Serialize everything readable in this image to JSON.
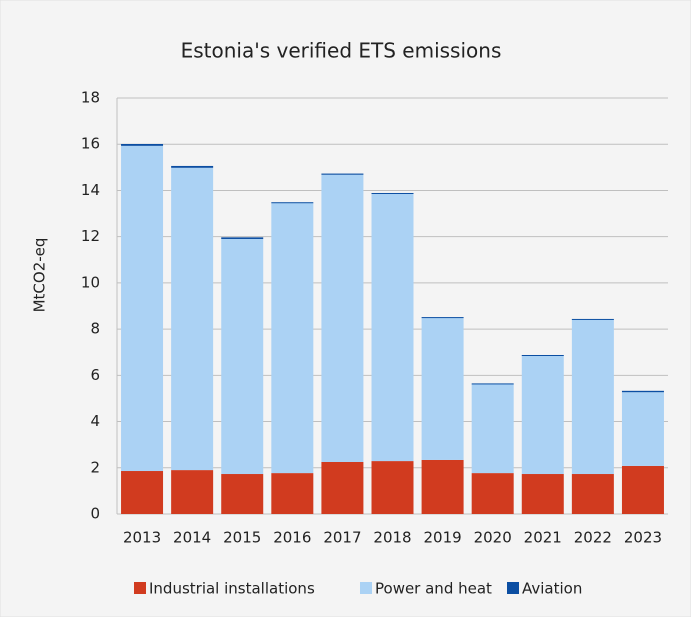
{
  "chart_data": {
    "type": "stacked_bar",
    "title": "Estonia's verified ETS emissions",
    "y_label": "MtCO2-eq",
    "categories": [
      "2013",
      "2014",
      "2015",
      "2016",
      "2017",
      "2018",
      "2019",
      "2020",
      "2021",
      "2022",
      "2023"
    ],
    "series": [
      {
        "name": "Industrial installations",
        "color": "#d13b1f",
        "values": [
          1.86,
          1.9,
          1.73,
          1.77,
          2.25,
          2.29,
          2.34,
          1.77,
          1.73,
          1.73,
          2.08
        ]
      },
      {
        "name": "Power and heat",
        "color": "#abd2f4",
        "values": [
          14.07,
          13.08,
          10.17,
          11.69,
          12.43,
          11.56,
          6.14,
          3.86,
          5.13,
          6.69,
          3.19
        ]
      },
      {
        "name": "Aviation",
        "color": "#0b4ea2",
        "values": [
          0.08,
          0.08,
          0.07,
          0.03,
          0.05,
          0.04,
          0.04,
          0.02,
          0.02,
          0.02,
          0.06
        ]
      }
    ],
    "ylim": [
      0,
      18
    ],
    "yticks": [
      0,
      2,
      4,
      6,
      8,
      10,
      12,
      14,
      16,
      18
    ],
    "grid": true
  }
}
